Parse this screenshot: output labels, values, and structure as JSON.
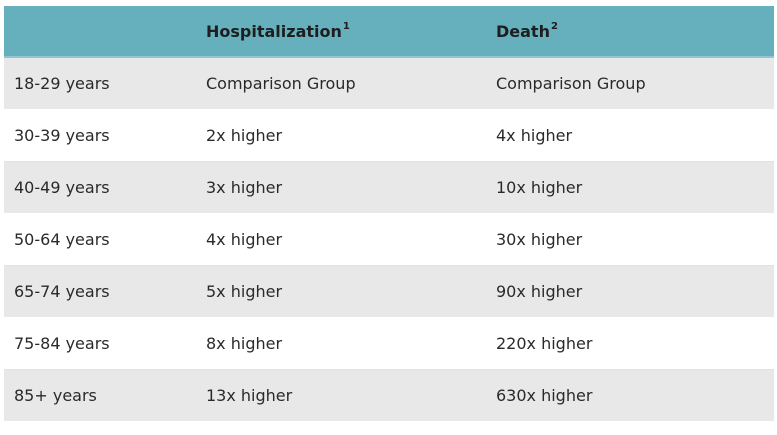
{
  "table": {
    "headers": [
      "",
      "Hospitalization",
      "Death"
    ],
    "header_superscripts": [
      "",
      "1",
      "2"
    ],
    "rows": [
      [
        "18-29 years",
        "Comparison Group",
        "Comparison Group"
      ],
      [
        "30-39 years",
        "2x higher",
        "4x higher"
      ],
      [
        "40-49 years",
        "3x higher",
        "10x higher"
      ],
      [
        "50-64 years",
        "4x higher",
        "30x higher"
      ],
      [
        "65-74 years",
        "5x higher",
        "90x higher"
      ],
      [
        "75-84 years",
        "8x higher",
        "220x higher"
      ],
      [
        "85+ years",
        "13x higher",
        "630x higher"
      ]
    ]
  },
  "colors": {
    "header_bg": "#66b0bd",
    "row_alt_bg": "#e8e8e8",
    "row_bg": "#ffffff"
  }
}
